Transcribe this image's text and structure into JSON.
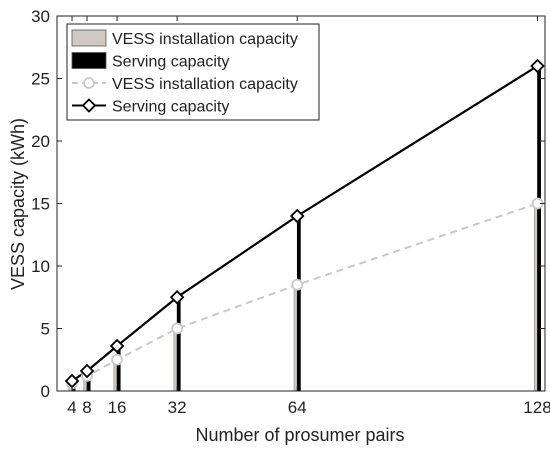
{
  "chart_data": {
    "type": "bar+line",
    "xlabel": "Number of prosumer pairs",
    "ylabel": "VESS capacity (kWh)",
    "xlim": [
      0,
      130
    ],
    "ylim": [
      0,
      30
    ],
    "x_ticks": [
      4,
      8,
      16,
      32,
      64,
      128
    ],
    "y_ticks": [
      0,
      5,
      10,
      15,
      20,
      25,
      30
    ],
    "grid": false,
    "legend_position": "top-left",
    "x": [
      4,
      8,
      16,
      32,
      64,
      128
    ],
    "series": [
      {
        "name": "VESS installation capacity",
        "kind": "bar",
        "color": "#cfc9c2",
        "values": [
          0.6,
          1.2,
          2.5,
          5.0,
          8.5,
          15.0
        ]
      },
      {
        "name": "Serving capacity",
        "kind": "bar",
        "color": "#000000",
        "values": [
          0.8,
          1.6,
          3.6,
          7.5,
          14.0,
          26.0
        ]
      },
      {
        "name": "VESS installation capacity",
        "kind": "line",
        "color": "#c8c8c8",
        "marker": "circle",
        "dashed": true,
        "values": [
          0.6,
          1.2,
          2.5,
          5.0,
          8.5,
          15.0
        ]
      },
      {
        "name": "Serving capacity",
        "kind": "line",
        "color": "#000000",
        "marker": "diamond",
        "dashed": false,
        "values": [
          0.8,
          1.6,
          3.6,
          7.5,
          14.0,
          26.0
        ]
      }
    ]
  }
}
